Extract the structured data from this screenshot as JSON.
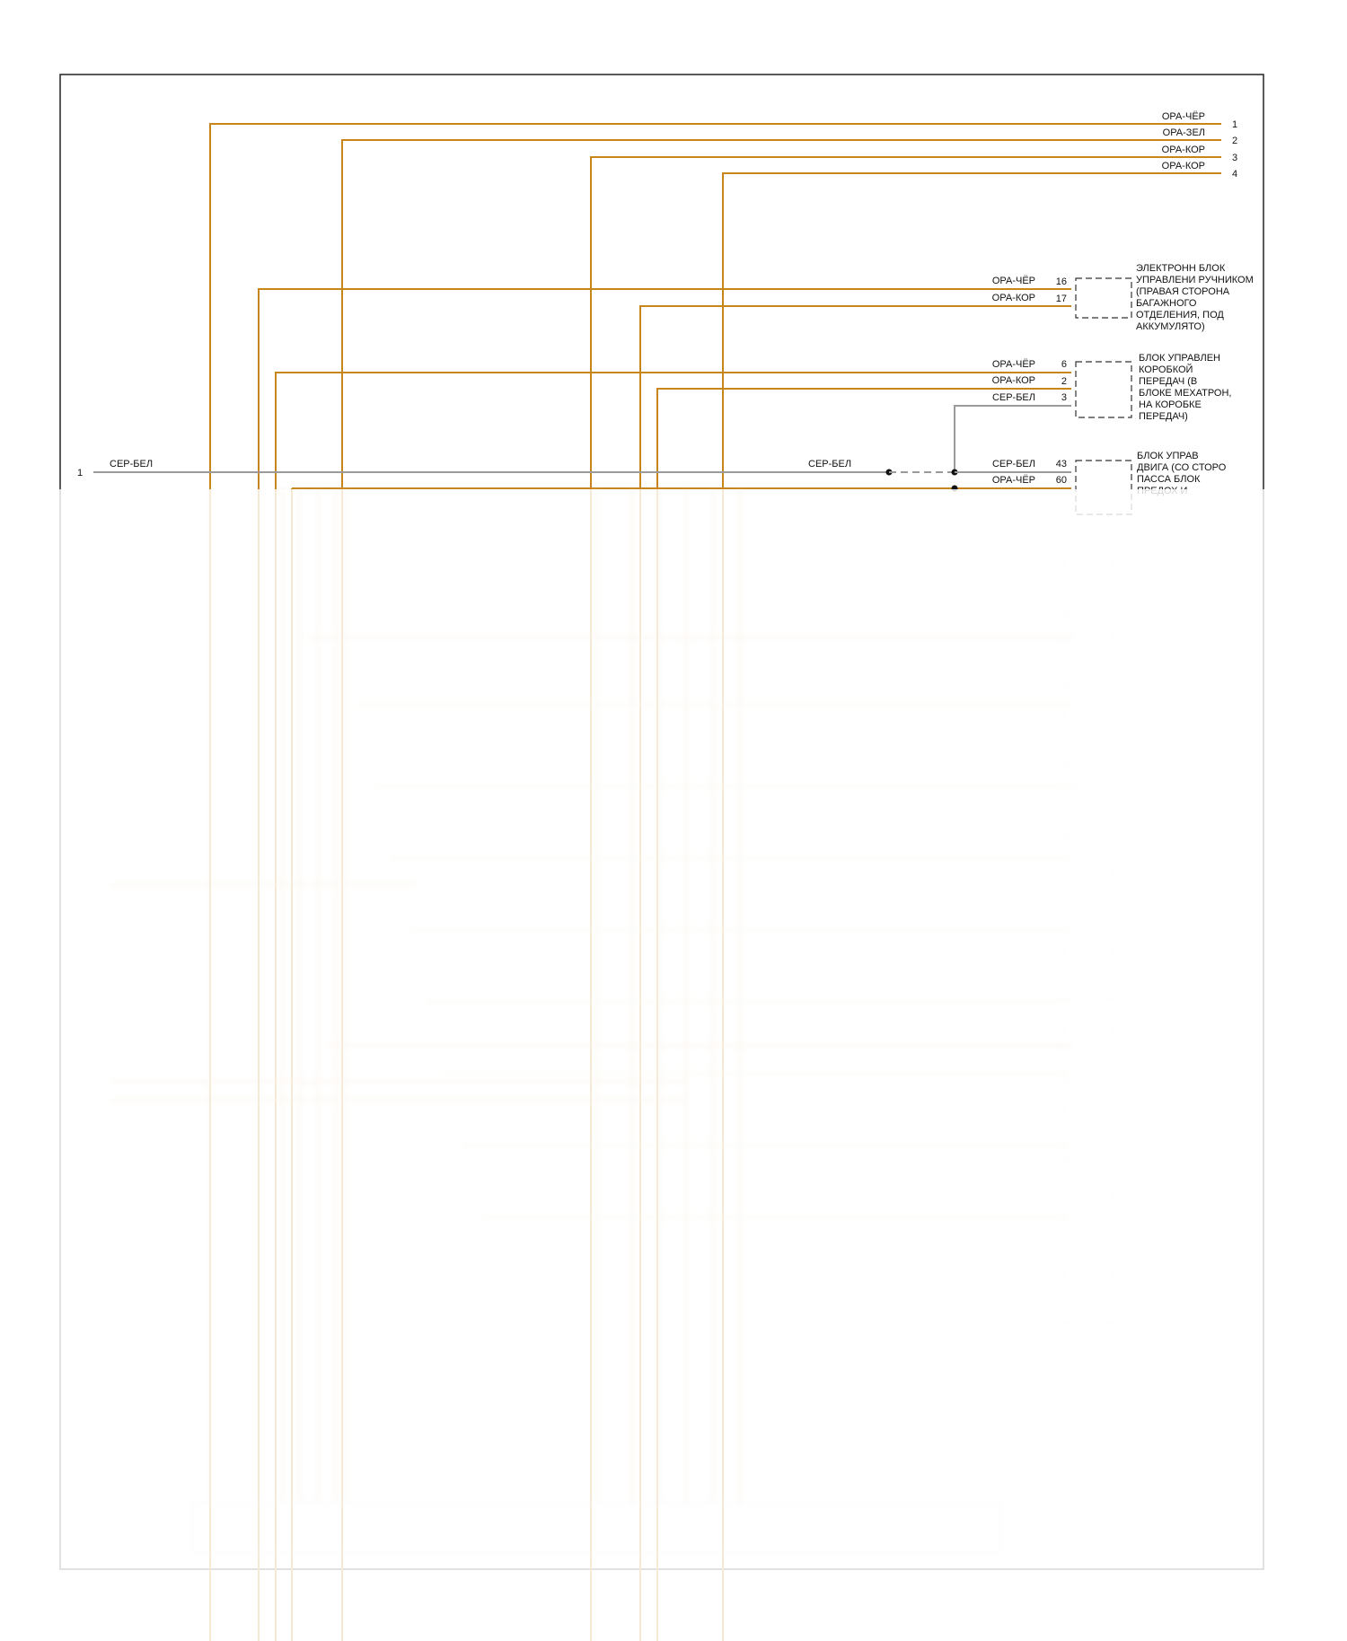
{
  "colors": {
    "orange_wire": "#c8861a",
    "grey_wire": "#9a9a9a",
    "frame": "#222222",
    "dashed_box": "#333333"
  },
  "top_connector": {
    "wires": [
      {
        "color": "ОРА-ЧЁР",
        "pin": "1"
      },
      {
        "color": "ОРА-ЗЕЛ",
        "pin": "2"
      },
      {
        "color": "ОРА-КОР",
        "pin": "3"
      },
      {
        "color": "ОРА-КОР",
        "pin": "4"
      }
    ]
  },
  "left_connector": {
    "pin": "1",
    "wire_label": "СЕР-БЕЛ"
  },
  "splice_label": "СЕР-БЕЛ",
  "modules": [
    {
      "name_lines": [
        "ЭЛЕКТРОНН БЛОК",
        "УПРАВЛЕНИ РУЧНИКОМ",
        "(ПРАВАЯ СТОРОНА",
        "БАГАЖНОГО",
        "ОТДЕЛЕНИЯ, ПОД",
        "АККУМУЛЯТО)"
      ],
      "wires": [
        {
          "color": "ОРА-ЧЁР",
          "pin": "16"
        },
        {
          "color": "ОРА-КОР",
          "pin": "17"
        }
      ]
    },
    {
      "name_lines": [
        "БЛОК УПРАВЛЕН",
        "КОРОБКОЙ",
        "ПЕРЕДАЧ (В",
        "БЛОКЕ МЕХАТРОН,",
        "НА КОРОБКЕ",
        "ПЕРЕДАЧ)"
      ],
      "wires": [
        {
          "color": "ОРА-ЧЁР",
          "pin": "6"
        },
        {
          "color": "ОРА-КОР",
          "pin": "2"
        },
        {
          "color": "СЕР-БЕЛ",
          "pin": "3"
        }
      ]
    },
    {
      "name_lines": [
        "БЛОК УПРАВ",
        "ДВИГА (СО СТОРО",
        "ПАССА БЛОК",
        "ПРЕДОХ И"
      ],
      "wires": [
        {
          "color": "СЕР-БЕЛ",
          "pin": "43"
        },
        {
          "color": "ОРА-ЧЁР",
          "pin": "60"
        }
      ]
    }
  ]
}
